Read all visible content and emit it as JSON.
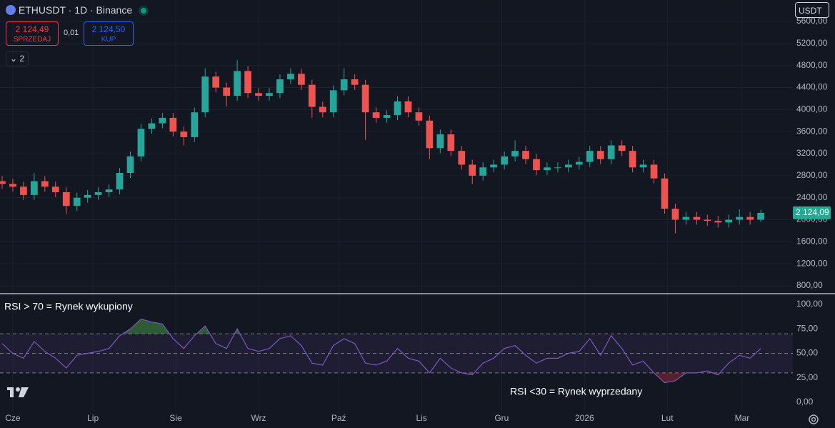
{
  "header": {
    "symbol": "ETHUSDT · 1D · Binance",
    "sell": "2 124,49",
    "sell_label": "SPRZEDAJ",
    "spread": "0,01",
    "buy": "2 124,50",
    "buy_label": "KUP",
    "indicators_count": "2",
    "currency": "USDT"
  },
  "chart_data": [
    {
      "type": "candlestick",
      "up_color": "#26a69a",
      "down_color": "#ef5350",
      "x": [
        -4,
        0,
        4,
        8,
        12,
        16,
        20,
        24,
        28,
        32,
        36,
        40,
        44,
        48,
        52,
        56,
        60,
        64,
        68,
        72,
        76,
        80,
        84,
        88,
        92,
        96,
        100,
        104,
        108,
        112,
        116,
        120,
        124,
        128,
        132,
        136,
        140,
        144,
        148,
        152,
        156,
        160,
        164,
        168,
        172,
        176,
        180,
        184,
        188,
        192,
        196,
        200,
        204,
        208,
        212,
        216,
        220,
        224,
        228,
        232,
        236,
        240,
        244,
        248,
        252,
        256,
        260,
        264,
        268,
        272,
        276,
        280
      ],
      "open": [
        2700,
        2650,
        2600,
        2450,
        2700,
        2600,
        2500,
        2250,
        2400,
        2450,
        2500,
        2550,
        2850,
        3150,
        3650,
        3750,
        3850,
        3600,
        3500,
        3950,
        4600,
        4400,
        4250,
        4700,
        4300,
        4250,
        4300,
        4550,
        4650,
        4450,
        4050,
        3950,
        4350,
        4550,
        4450,
        3950,
        3850,
        3900,
        4150,
        3950,
        3800,
        3300,
        3550,
        3250,
        3000,
        2800,
        2950,
        3000,
        3150,
        3250,
        3100,
        2900,
        2950,
        2950,
        3000,
        3050,
        3250,
        3100,
        3350,
        3250,
        2950,
        3000,
        2750,
        2200,
        2000,
        2050,
        2000,
        1980,
        1950,
        2000,
        2050,
        2000
      ],
      "high": [
        2790,
        2740,
        2690,
        2850,
        2790,
        2690,
        2590,
        2490,
        2540,
        2590,
        2640,
        2940,
        3240,
        3740,
        3840,
        3940,
        3940,
        3690,
        4040,
        4750,
        4690,
        4490,
        4900,
        4790,
        4390,
        4390,
        4640,
        4750,
        4740,
        4540,
        4140,
        4440,
        4750,
        4640,
        4540,
        4040,
        3990,
        4240,
        4240,
        4040,
        3890,
        3640,
        3640,
        3340,
        3090,
        3040,
        3090,
        3240,
        3440,
        3340,
        3190,
        3040,
        3040,
        3090,
        3140,
        3340,
        3340,
        3440,
        3440,
        3340,
        3090,
        3090,
        2840,
        2290,
        2140,
        2140,
        2090,
        2070,
        2090,
        2190,
        2140,
        2180
      ],
      "low": [
        2560,
        2510,
        2360,
        2360,
        2510,
        2410,
        2100,
        2160,
        2310,
        2360,
        2410,
        2460,
        2760,
        3060,
        3560,
        3660,
        3510,
        3350,
        3410,
        3860,
        4310,
        4060,
        4160,
        4210,
        4160,
        4160,
        4210,
        4460,
        4360,
        3850,
        3860,
        3860,
        4260,
        4360,
        3450,
        3760,
        3760,
        3810,
        3860,
        3710,
        3100,
        3210,
        3160,
        2910,
        2650,
        2710,
        2860,
        2910,
        3060,
        3010,
        2810,
        2810,
        2860,
        2860,
        2910,
        2960,
        3010,
        3010,
        3160,
        2860,
        2860,
        2660,
        2110,
        1750,
        1910,
        1910,
        1890,
        1860,
        1860,
        1910,
        1910,
        1960
      ],
      "close": [
        2650,
        2600,
        2450,
        2700,
        2600,
        2500,
        2250,
        2400,
        2450,
        2500,
        2550,
        2850,
        3150,
        3650,
        3750,
        3850,
        3600,
        3500,
        3950,
        4600,
        4400,
        4250,
        4700,
        4300,
        4250,
        4300,
        4550,
        4650,
        4450,
        4050,
        3950,
        4350,
        4550,
        4450,
        3950,
        3850,
        3900,
        4150,
        3950,
        3800,
        3300,
        3550,
        3250,
        3000,
        2800,
        2950,
        3000,
        3150,
        3250,
        3100,
        2900,
        2950,
        2950,
        3000,
        3050,
        3250,
        3100,
        3350,
        3250,
        2950,
        3000,
        2750,
        2200,
        2000,
        2050,
        2000,
        1980,
        1950,
        2000,
        2050,
        2000,
        2124.09
      ],
      "xlim": [
        -4.8,
        292
      ],
      "ylim": [
        670,
        5990
      ],
      "xticks": [
        {
          "value": 0,
          "label": "Cze"
        },
        {
          "value": 30,
          "label": "Lip"
        },
        {
          "value": 61,
          "label": "Sie"
        },
        {
          "value": 92,
          "label": "Wrz"
        },
        {
          "value": 122,
          "label": "Paź"
        },
        {
          "value": 153,
          "label": "Lis"
        },
        {
          "value": 183,
          "label": "Gru"
        },
        {
          "value": 214,
          "label": "2026"
        },
        {
          "value": 245,
          "label": "Lut"
        },
        {
          "value": 273,
          "label": "Mar"
        }
      ],
      "yticks": [
        {
          "value": 800,
          "label": "800,00"
        },
        {
          "value": 1200,
          "label": "1200,00"
        },
        {
          "value": 1600,
          "label": "1600,00"
        },
        {
          "value": 2000,
          "label": "2000,00"
        },
        {
          "value": 2400,
          "label": "2400,00"
        },
        {
          "value": 2800,
          "label": "2800,00"
        },
        {
          "value": 3200,
          "label": "3200,00"
        },
        {
          "value": 3600,
          "label": "3600,00"
        },
        {
          "value": 4000,
          "label": "4000,00"
        },
        {
          "value": 4400,
          "label": "4400,00"
        },
        {
          "value": 4800,
          "label": "4800,00"
        },
        {
          "value": 5200,
          "label": "5200,00"
        },
        {
          "value": 5600,
          "label": "5600,00"
        }
      ],
      "last_price": {
        "value": 2124.09,
        "label": "2 124,09"
      }
    },
    {
      "type": "line",
      "color": "#7e57c2",
      "annotations": [
        "RSI > 70 = Rynek wykupiony",
        "RSI <30 = Rynek wyprzedany"
      ],
      "values": [
        60,
        50,
        45,
        62,
        52,
        45,
        35,
        48,
        50,
        52,
        55,
        68,
        75,
        85,
        82,
        80,
        65,
        55,
        68,
        78,
        60,
        55,
        75,
        55,
        52,
        55,
        65,
        68,
        58,
        40,
        38,
        58,
        65,
        60,
        40,
        38,
        42,
        55,
        45,
        42,
        30,
        45,
        35,
        30,
        28,
        40,
        45,
        55,
        58,
        48,
        40,
        45,
        45,
        50,
        52,
        65,
        48,
        68,
        55,
        38,
        42,
        30,
        20,
        22,
        30,
        30,
        32,
        28,
        40,
        48,
        45,
        55
      ],
      "ylim": [
        -8.8,
        111
      ],
      "yticks": [
        {
          "value": 0,
          "label": "0,00"
        },
        {
          "value": 25,
          "label": "25,00"
        },
        {
          "value": 50,
          "label": "50,00"
        },
        {
          "value": 75,
          "label": "75,00"
        },
        {
          "value": 100,
          "label": "100,00"
        }
      ],
      "levels": [
        30,
        50,
        70
      ]
    }
  ]
}
